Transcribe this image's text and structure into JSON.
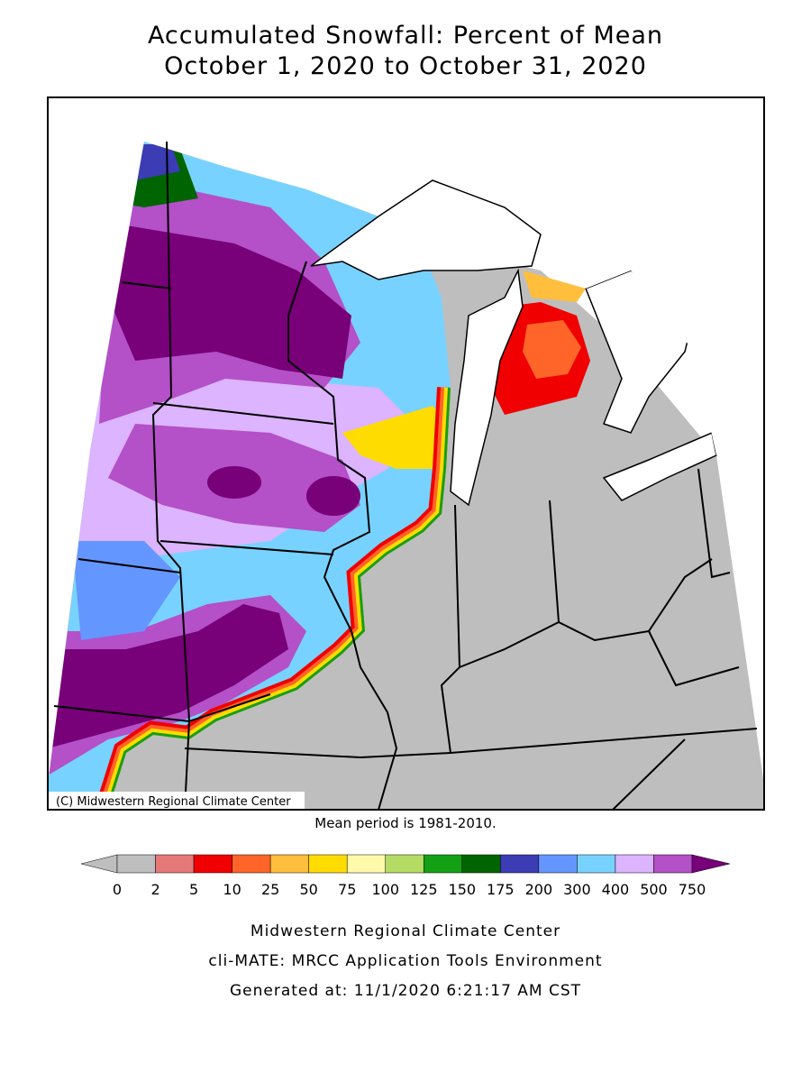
{
  "header": {
    "title": [
      "Accumulated Snowfall: Percent of Mean",
      "October 1, 2020 to October 31, 2020"
    ]
  },
  "map": {
    "copyright": "(C) Midwestern Regional Climate Center",
    "note": "Mean period is 1981-2010."
  },
  "legend": {
    "ticks": [
      0,
      2,
      5,
      10,
      25,
      50,
      75,
      100,
      125,
      150,
      175,
      200,
      300,
      400,
      500,
      750
    ],
    "colors": [
      "#bebebe",
      "#bebebe",
      "#e67878",
      "#f00000",
      "#ff6428",
      "#ffbe3c",
      "#ffdc00",
      "#fffaaa",
      "#b4dc64",
      "#14a014",
      "#006400",
      "#3c3cb4",
      "#6496ff",
      "#78d2ff",
      "#dcb4ff",
      "#b450c8",
      "#780078"
    ]
  },
  "footer": {
    "lines": [
      "Midwestern Regional Climate Center",
      "cli-MATE: MRCC Application Tools Environment",
      "Generated at: 11/1/2020 6:21:17 AM CST"
    ]
  }
}
